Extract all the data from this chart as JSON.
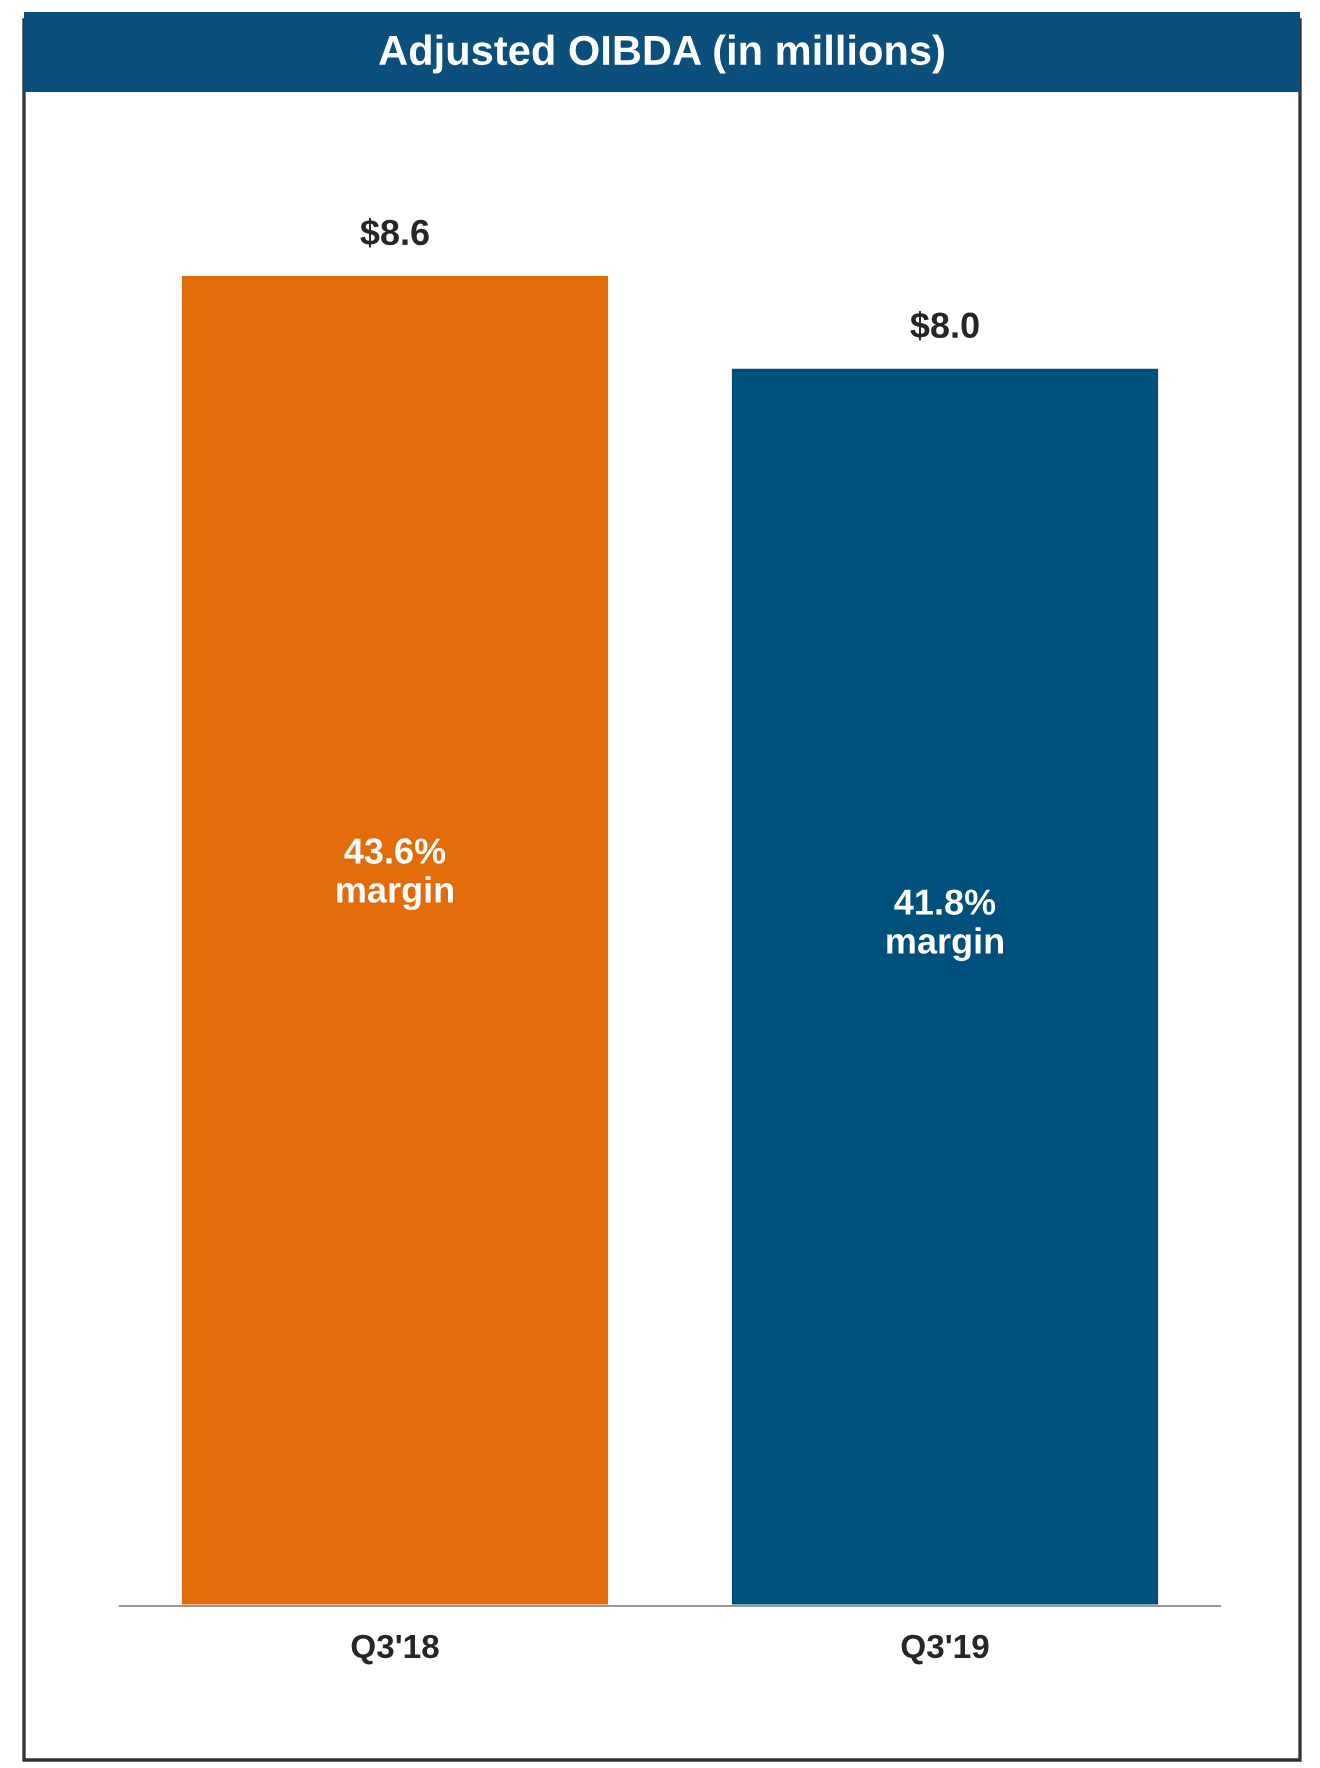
{
  "chart_data": {
    "type": "bar",
    "title": "Adjusted OIBDA (in millions)",
    "categories": [
      "Q3'18",
      "Q3'19"
    ],
    "values": [
      8.6,
      8.0
    ],
    "colors": [
      "#e36c0a",
      "#00507d"
    ],
    "value_labels": [
      "$8.6",
      "$8.0"
    ],
    "annotations": [
      "43.6%\nmargin",
      "41.8%\nmargin"
    ],
    "grid": false,
    "legend": false
  }
}
